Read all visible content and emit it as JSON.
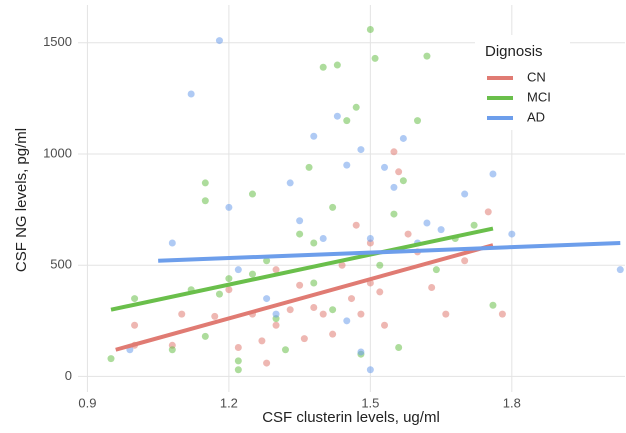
{
  "chart_data": {
    "type": "scatter",
    "xlabel": "CSF clusterin levels, ug/ml",
    "ylabel": "CSF NG levels, pg/ml",
    "legend_title": "Dignosis",
    "legend_position": "top-right",
    "grid": true,
    "xlim": [
      0.88,
      2.04
    ],
    "ylim": [
      -70,
      1670
    ],
    "xticks": [
      0.9,
      1.2,
      1.5,
      1.8
    ],
    "yticks": [
      0,
      500,
      1000,
      1500
    ],
    "series": [
      {
        "name": "CN",
        "color": "#e07b73",
        "x": [
          1.0,
          1.0,
          1.08,
          1.1,
          1.17,
          1.2,
          1.22,
          1.25,
          1.27,
          1.3,
          1.3,
          1.33,
          1.35,
          1.38,
          1.4,
          1.42,
          1.44,
          1.46,
          1.48,
          1.5,
          1.52,
          1.53,
          1.55,
          1.56,
          1.58,
          1.6,
          1.63,
          1.66,
          1.7,
          1.75,
          1.78,
          1.5,
          1.47,
          1.36,
          1.28
        ],
        "values": [
          230,
          140,
          140,
          280,
          270,
          390,
          130,
          280,
          160,
          230,
          480,
          300,
          410,
          310,
          280,
          190,
          500,
          350,
          280,
          600,
          380,
          230,
          1010,
          920,
          640,
          560,
          400,
          280,
          520,
          740,
          280,
          420,
          680,
          170,
          60
        ],
        "trend_x": [
          0.96,
          1.76
        ],
        "trend_values": [
          120,
          590
        ]
      },
      {
        "name": "MCI",
        "color": "#6abf4b",
        "x": [
          0.95,
          1.0,
          1.08,
          1.12,
          1.15,
          1.15,
          1.15,
          1.18,
          1.2,
          1.22,
          1.22,
          1.25,
          1.25,
          1.28,
          1.3,
          1.32,
          1.35,
          1.37,
          1.38,
          1.4,
          1.42,
          1.43,
          1.45,
          1.47,
          1.5,
          1.51,
          1.52,
          1.55,
          1.56,
          1.57,
          1.6,
          1.62,
          1.64,
          1.68,
          1.72,
          1.76,
          1.48,
          1.42,
          1.38
        ],
        "values": [
          80,
          350,
          120,
          390,
          870,
          790,
          180,
          370,
          440,
          30,
          70,
          820,
          460,
          520,
          260,
          120,
          640,
          940,
          600,
          1390,
          760,
          1400,
          1150,
          1210,
          1560,
          1430,
          500,
          730,
          130,
          880,
          1150,
          1440,
          480,
          620,
          680,
          320,
          100,
          300,
          420
        ],
        "trend_x": [
          0.95,
          1.76
        ],
        "trend_values": [
          300,
          665
        ]
      },
      {
        "name": "AD",
        "color": "#6d9eeb",
        "x": [
          0.99,
          1.08,
          1.12,
          1.18,
          1.2,
          1.22,
          1.28,
          1.3,
          1.33,
          1.35,
          1.38,
          1.4,
          1.43,
          1.45,
          1.48,
          1.5,
          1.53,
          1.55,
          1.57,
          1.6,
          1.62,
          1.65,
          1.7,
          1.76,
          1.8,
          2.03,
          1.48,
          1.45,
          1.5
        ],
        "values": [
          120,
          600,
          1270,
          1510,
          760,
          480,
          350,
          280,
          870,
          700,
          1080,
          620,
          1170,
          950,
          1020,
          620,
          940,
          850,
          1070,
          600,
          690,
          660,
          820,
          910,
          640,
          480,
          110,
          250,
          30
        ],
        "trend_x": [
          1.05,
          2.03
        ],
        "trend_values": [
          520,
          600
        ]
      }
    ]
  }
}
